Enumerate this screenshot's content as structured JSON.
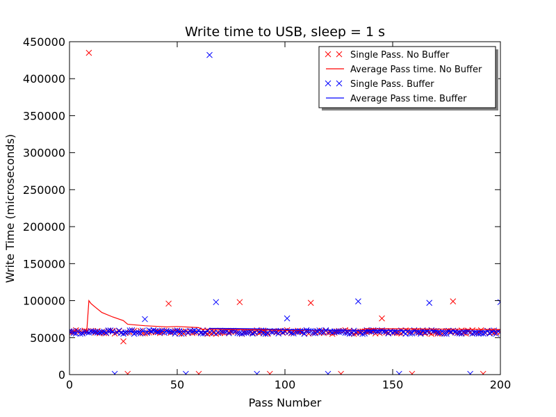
{
  "chart_data": {
    "type": "scatter",
    "title": "Write time to USB, sleep = 1 s",
    "xlabel": "Pass Number",
    "ylabel": "Write Time (microseconds)",
    "xlim": [
      0,
      200
    ],
    "ylim": [
      0,
      450000
    ],
    "xticks": [
      "0",
      "50",
      "100",
      "150",
      "200"
    ],
    "yticks": [
      "0",
      "50000",
      "100000",
      "150000",
      "200000",
      "250000",
      "300000",
      "350000",
      "400000",
      "450000"
    ],
    "grid": false,
    "legend_position": "top-right",
    "baseline": {
      "no_buffer_band": [
        55000,
        60000
      ],
      "buffer_band": [
        55000,
        60000
      ]
    },
    "series": [
      {
        "name": "Single Pass. No Buffer",
        "kind": "scatter",
        "marker": "x",
        "color": "#ff0000",
        "outliers": [
          [
            9,
            435000
          ],
          [
            25,
            45000
          ],
          [
            27,
            1000
          ],
          [
            46,
            96000
          ],
          [
            60,
            1000
          ],
          [
            79,
            98000
          ],
          [
            93,
            1000
          ],
          [
            112,
            97000
          ],
          [
            126,
            1000
          ],
          [
            145,
            76000
          ],
          [
            159,
            1000
          ],
          [
            178,
            99000
          ],
          [
            192,
            1000
          ]
        ]
      },
      {
        "name": "Average Pass time. No Buffer",
        "kind": "line",
        "color": "#ff0000",
        "points": [
          [
            0,
            58000
          ],
          [
            8,
            58000
          ],
          [
            9,
            100000
          ],
          [
            10,
            96000
          ],
          [
            12,
            91000
          ],
          [
            15,
            84000
          ],
          [
            20,
            78000
          ],
          [
            25,
            73000
          ],
          [
            27,
            68000
          ],
          [
            35,
            66000
          ],
          [
            45,
            64500
          ],
          [
            50,
            65000
          ],
          [
            60,
            63500
          ],
          [
            61,
            61500
          ],
          [
            80,
            61000
          ],
          [
            100,
            60000
          ],
          [
            136,
            60000
          ],
          [
            137,
            62000
          ],
          [
            150,
            62000
          ],
          [
            170,
            61500
          ],
          [
            200,
            61000
          ]
        ]
      },
      {
        "name": "Single Pass. Buffer",
        "kind": "scatter",
        "marker": "x",
        "color": "#0000ff",
        "outliers": [
          [
            21,
            1000
          ],
          [
            35,
            75000
          ],
          [
            54,
            1000
          ],
          [
            65,
            432000
          ],
          [
            68,
            98000
          ],
          [
            87,
            1000
          ],
          [
            101,
            76000
          ],
          [
            120,
            1000
          ],
          [
            134,
            99000
          ],
          [
            153,
            1000
          ],
          [
            167,
            97000
          ],
          [
            186,
            1000
          ],
          [
            200,
            98000
          ]
        ]
      },
      {
        "name": "Average Pass time. Buffer",
        "kind": "line",
        "color": "#0000ff",
        "points": [
          [
            0,
            57500
          ],
          [
            20,
            57500
          ],
          [
            35,
            58500
          ],
          [
            50,
            58500
          ],
          [
            64,
            58000
          ],
          [
            65,
            62500
          ],
          [
            70,
            62500
          ],
          [
            85,
            62000
          ],
          [
            100,
            61000
          ],
          [
            120,
            60000
          ],
          [
            150,
            59500
          ],
          [
            200,
            59000
          ]
        ]
      }
    ]
  }
}
